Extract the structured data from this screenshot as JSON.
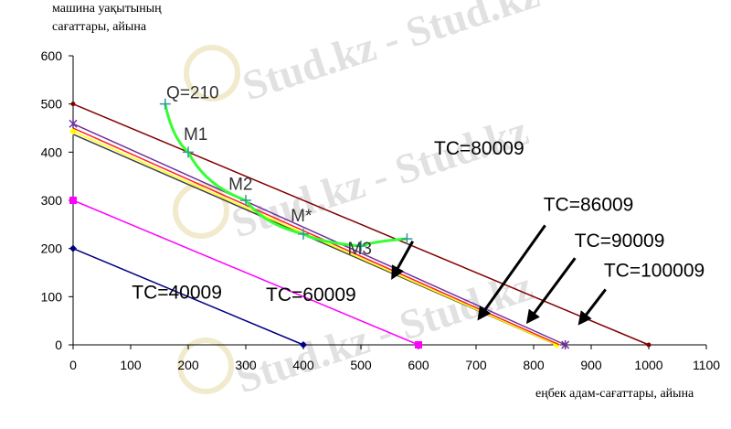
{
  "chart_data": {
    "type": "line",
    "title": "",
    "ylabel_lines": [
      "машина уақытының",
      "сағаттары, айына"
    ],
    "xlabel": "еңбек адам-сағаттары, айына",
    "xlim": [
      0,
      1100
    ],
    "ylim": [
      0,
      600
    ],
    "x_ticks": [
      0,
      100,
      200,
      300,
      400,
      500,
      600,
      700,
      800,
      900,
      1000,
      1100
    ],
    "y_ticks": [
      0,
      100,
      200,
      300,
      400,
      500,
      600
    ],
    "grid": false,
    "series": [
      {
        "color": "#000080",
        "marker": "diamond",
        "points": [
          [
            0,
            200
          ],
          [
            400,
            0
          ]
        ]
      },
      {
        "color": "#ff00ff",
        "marker": "square",
        "points": [
          [
            0,
            300
          ],
          [
            600,
            0
          ]
        ]
      },
      {
        "color": "#404040",
        "marker": "none",
        "points": [
          [
            0,
            437
          ],
          [
            840,
            0
          ]
        ]
      },
      {
        "color": "#ffff00",
        "marker": "diamond",
        "points": [
          [
            0,
            443
          ],
          [
            840,
            0
          ]
        ]
      },
      {
        "color": "#ff2020",
        "marker": "none",
        "points": [
          [
            0,
            450
          ],
          [
            845,
            0
          ]
        ]
      },
      {
        "color": "#7030a0",
        "marker": "x",
        "points": [
          [
            0,
            459
          ],
          [
            855,
            0
          ]
        ]
      },
      {
        "color": "#800000",
        "marker": "dot",
        "points": [
          [
            0,
            500
          ],
          [
            1000,
            0
          ]
        ]
      },
      {
        "color": "#33ff33",
        "marker": "plus",
        "points": [
          [
            160,
            500
          ],
          [
            200,
            400
          ],
          [
            300,
            300
          ],
          [
            400,
            230
          ],
          [
            500,
            205
          ],
          [
            580,
            220
          ]
        ]
      }
    ],
    "annotations": [
      {
        "text": "Q=210",
        "x": 162,
        "y": 512,
        "size": 19,
        "color": "#333333"
      },
      {
        "text": "M1",
        "x": 192,
        "y": 425,
        "size": 19,
        "color": "#333333"
      },
      {
        "text": "M2",
        "x": 270,
        "y": 322,
        "size": 19,
        "color": "#333333"
      },
      {
        "text": "M*",
        "x": 378,
        "y": 256,
        "size": 19,
        "color": "#333333"
      },
      {
        "text": "M3",
        "x": 477,
        "y": 188,
        "size": 19,
        "color": "#333333"
      },
      {
        "text": "TC=80009",
        "x": 627,
        "y": 395,
        "size": 21,
        "color": "#000000"
      },
      {
        "text": "TC=86009",
        "x": 817,
        "y": 278,
        "size": 21,
        "color": "#000000"
      },
      {
        "text": "TC=90009",
        "x": 871,
        "y": 203,
        "size": 21,
        "color": "#000000"
      },
      {
        "text": "TC=100009",
        "x": 922,
        "y": 141,
        "size": 21,
        "color": "#000000"
      },
      {
        "text": "TC=40009",
        "x": 102,
        "y": 96,
        "size": 21,
        "color": "#000000"
      },
      {
        "text": "TC=60009",
        "x": 335,
        "y": 91,
        "size": 21,
        "color": "#000000"
      }
    ],
    "arrows": [
      {
        "from": [
          590,
          215
        ],
        "to": [
          555,
          140
        ]
      },
      {
        "from": [
          820,
          248
        ],
        "to": [
          705,
          55
        ]
      },
      {
        "from": [
          872,
          180
        ],
        "to": [
          790,
          48
        ]
      },
      {
        "from": [
          925,
          115
        ],
        "to": [
          880,
          45
        ]
      }
    ]
  },
  "watermark": "Stud.kz - Stud.kz"
}
